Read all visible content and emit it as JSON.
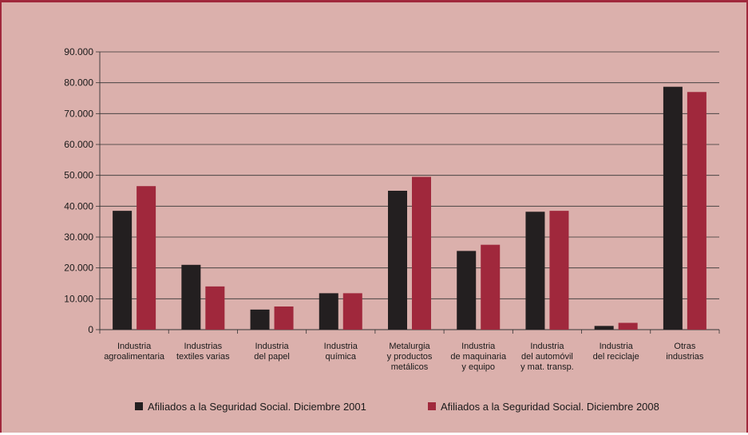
{
  "chart_data": {
    "type": "bar",
    "title": "",
    "xlabel": "",
    "ylabel": "",
    "ylim": [
      0,
      90000
    ],
    "yticks": [
      0,
      10000,
      20000,
      30000,
      40000,
      50000,
      60000,
      70000,
      80000,
      90000
    ],
    "ytick_labels": [
      "0",
      "10.000",
      "20.000",
      "30.000",
      "40.000",
      "50.000",
      "60.000",
      "70.000",
      "80.000",
      "90.000"
    ],
    "grid": "horizontal",
    "legend_position": "bottom",
    "categories": [
      [
        "Industria",
        "agroalimentaria"
      ],
      [
        "Industrias",
        "textiles varias"
      ],
      [
        "Industria",
        "del papel"
      ],
      [
        "Industria",
        "química"
      ],
      [
        "Metalurgia",
        "y productos",
        "metálicos"
      ],
      [
        "Industria",
        "de maquinaria",
        "y equipo"
      ],
      [
        "Industria",
        "del automóvil",
        "y mat. transp."
      ],
      [
        "Industria",
        "del reciclaje"
      ],
      [
        "Otras",
        "industrias"
      ]
    ],
    "series": [
      {
        "name": "Afiliados a la Seguridad Social. Diciembre 2001",
        "color": "#231f20",
        "values": [
          38500,
          21000,
          6500,
          11800,
          45000,
          25500,
          38200,
          1200,
          78700
        ]
      },
      {
        "name": "Afiliados a la Seguridad Social. Diciembre 2008",
        "color": "#a0283c",
        "values": [
          46500,
          14000,
          7500,
          11800,
          49500,
          27500,
          38500,
          2200,
          77000
        ]
      }
    ]
  }
}
